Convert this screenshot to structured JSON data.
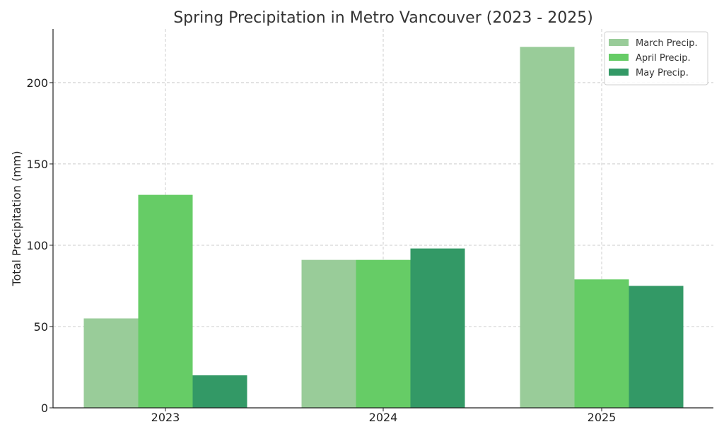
{
  "chart_data": {
    "type": "bar",
    "title": "Spring Precipitation in Metro Vancouver (2023 - 2025)",
    "xlabel": "",
    "ylabel": "Total Precipitation (mm)",
    "categories": [
      "2023",
      "2024",
      "2025"
    ],
    "series": [
      {
        "name": "March Precip.",
        "values": [
          55,
          91,
          222
        ],
        "color": "#99cc99"
      },
      {
        "name": "April Precip.",
        "values": [
          131,
          91,
          79
        ],
        "color": "#66cc66"
      },
      {
        "name": "May Precip.",
        "values": [
          20,
          98,
          75
        ],
        "color": "#339966"
      }
    ],
    "ylim": [
      0,
      233
    ],
    "yticks": [
      0,
      50,
      100,
      150,
      200
    ],
    "grid": true,
    "legend_position": "top-right"
  }
}
